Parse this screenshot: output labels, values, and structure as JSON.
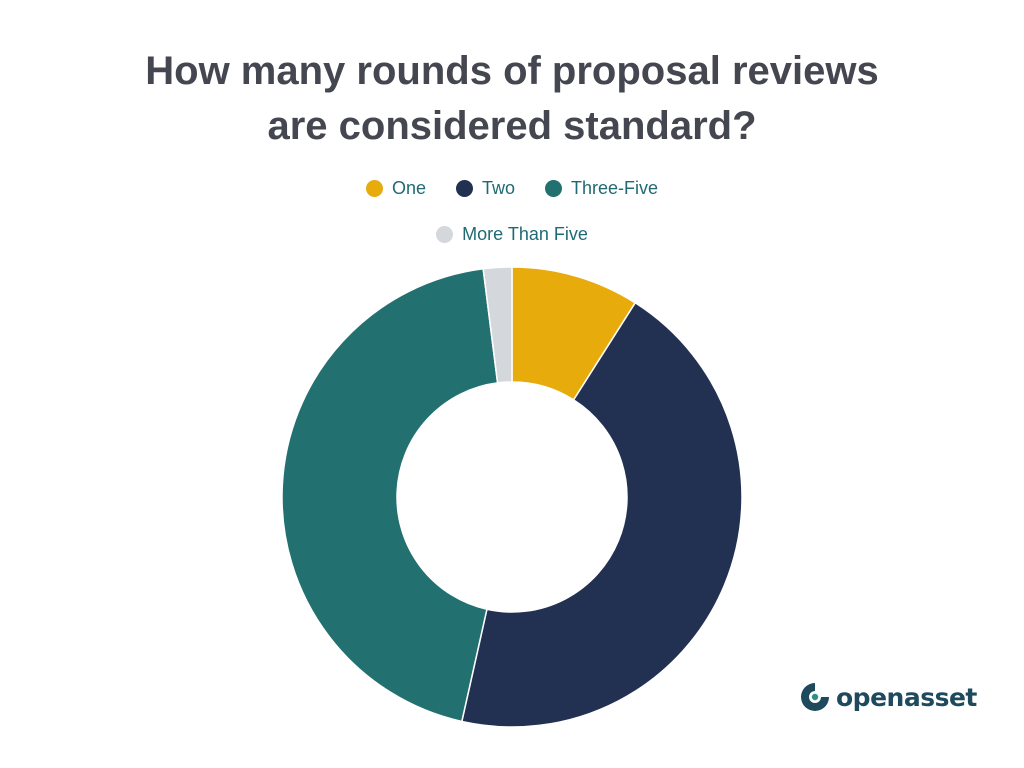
{
  "title": {
    "line1": "How many rounds of proposal reviews",
    "line2": "are considered standard?"
  },
  "chart_data": {
    "type": "pie",
    "style": "donut",
    "title": "How many rounds of proposal reviews are considered standard?",
    "legend_position": "top",
    "categories": [
      "One",
      "Two",
      "Three-Five",
      "More Than Five"
    ],
    "values": [
      9.0,
      44.5,
      44.5,
      2.0
    ],
    "unit": "percent (estimated)",
    "colors": [
      "#e8ab0c",
      "#223052",
      "#227070",
      "#d4d8dd"
    ]
  },
  "legend": {
    "items": [
      "One",
      "Two",
      "Three-Five",
      "More Than Five"
    ]
  },
  "logo": {
    "text": "openasset",
    "icon": "openasset-logo-icon",
    "color": "#1f4a5e"
  }
}
